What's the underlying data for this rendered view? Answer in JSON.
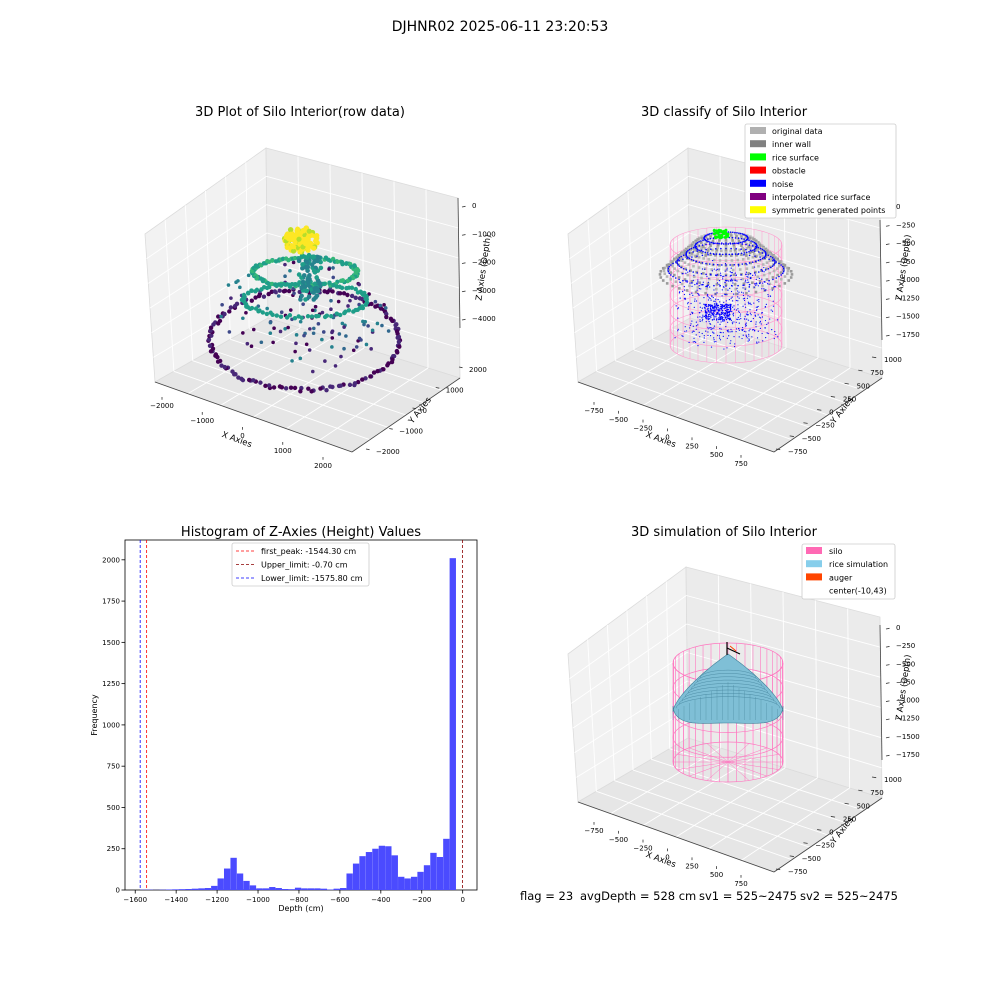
{
  "suptitle": "DJHNR02 2025-06-11 23:20:53",
  "footer": {
    "flag": "flag = 23",
    "avg_depth": "avgDepth = 528 cm",
    "sv1": "sv1 = 525~2475",
    "sv2": "sv2 = 525~2475"
  },
  "chart_data": [
    {
      "type": "scatter",
      "panel": "top-left",
      "title": "3D Plot of Silo Interior(row data)",
      "xlabel": "X Axies",
      "ylabel": "Y Axies",
      "zlabel": "Z Axies (Depth)",
      "x_ticks": [
        "−2000",
        "−1000",
        "0",
        "1000",
        "2000"
      ],
      "y_ticks": [
        "−2000",
        "−1000",
        "0",
        "1000",
        "2000"
      ],
      "z_ticks": [
        "0",
        "−1000",
        "−2000",
        "−3000",
        "−4000"
      ],
      "colormap": "viridis",
      "grid": true
    },
    {
      "type": "scatter",
      "panel": "top-right",
      "title": "3D classify of Silo Interior",
      "xlabel": "X Axies",
      "ylabel": "Y Axies",
      "zlabel": "Z Axies (Depth)",
      "x_ticks": [
        "−750",
        "−500",
        "−250",
        "0",
        "250",
        "500",
        "750"
      ],
      "y_ticks": [
        "−750",
        "−500",
        "−250",
        "0",
        "250",
        "500",
        "750",
        "1000"
      ],
      "z_ticks": [
        "0",
        "−250",
        "−500",
        "−750",
        "−1000",
        "−1250",
        "−1500",
        "−1750"
      ],
      "legend_position": "top-right",
      "legend": [
        {
          "label": "original data",
          "color": "#b0b0b0"
        },
        {
          "label": "inner wall",
          "color": "#808080"
        },
        {
          "label": "rice surface",
          "color": "#00ff00"
        },
        {
          "label": "obstacle",
          "color": "#ff0000"
        },
        {
          "label": "noise",
          "color": "#0000ff"
        },
        {
          "label": "interpolated rice surface",
          "color": "#800080"
        },
        {
          "label": "symmetric generated points",
          "color": "#ffff00"
        }
      ],
      "grid": true
    },
    {
      "type": "bar",
      "panel": "bottom-left",
      "title": "Histogram of Z-Axies (Height) Values",
      "xlabel": "Depth (cm)",
      "ylabel": "Frequency",
      "xlim": [
        -1650,
        70
      ],
      "ylim": [
        0,
        2120
      ],
      "x_ticks": [
        -1600,
        -1400,
        -1200,
        -1000,
        -800,
        -600,
        -400,
        -200,
        0
      ],
      "x_tick_labels": [
        "−1600",
        "−1400",
        "−1200",
        "−1000",
        "−800",
        "−600",
        "−400",
        "−200",
        "0"
      ],
      "y_ticks": [
        0,
        250,
        500,
        750,
        1000,
        1250,
        1500,
        1750,
        2000
      ],
      "bin_width": 31.5,
      "bins": [
        {
          "x": -1575.8,
          "v": 2
        },
        {
          "x": -1544.3,
          "v": 2
        },
        {
          "x": -1512.8,
          "v": 1
        },
        {
          "x": -1481.3,
          "v": 2
        },
        {
          "x": -1449.8,
          "v": 3
        },
        {
          "x": -1418.3,
          "v": 4
        },
        {
          "x": -1386.8,
          "v": 5
        },
        {
          "x": -1355.3,
          "v": 6
        },
        {
          "x": -1323.8,
          "v": 8
        },
        {
          "x": -1292.3,
          "v": 10
        },
        {
          "x": -1260.8,
          "v": 12
        },
        {
          "x": -1229.3,
          "v": 25
        },
        {
          "x": -1197.8,
          "v": 70
        },
        {
          "x": -1166.3,
          "v": 130
        },
        {
          "x": -1134.8,
          "v": 195
        },
        {
          "x": -1103.3,
          "v": 100
        },
        {
          "x": -1071.8,
          "v": 55
        },
        {
          "x": -1040.3,
          "v": 28
        },
        {
          "x": -1008.8,
          "v": 10
        },
        {
          "x": -977.3,
          "v": 10
        },
        {
          "x": -945.8,
          "v": 18
        },
        {
          "x": -914.3,
          "v": 12
        },
        {
          "x": -882.8,
          "v": 6
        },
        {
          "x": -851.3,
          "v": 5
        },
        {
          "x": -819.8,
          "v": 14
        },
        {
          "x": -788.3,
          "v": 10
        },
        {
          "x": -756.8,
          "v": 10
        },
        {
          "x": -725.3,
          "v": 10
        },
        {
          "x": -693.8,
          "v": 8
        },
        {
          "x": -662.3,
          "v": 3
        },
        {
          "x": -630.8,
          "v": 8
        },
        {
          "x": -599.3,
          "v": 12
        },
        {
          "x": -567.8,
          "v": 100
        },
        {
          "x": -536.3,
          "v": 160
        },
        {
          "x": -504.8,
          "v": 205
        },
        {
          "x": -473.3,
          "v": 230
        },
        {
          "x": -441.8,
          "v": 250
        },
        {
          "x": -410.3,
          "v": 268
        },
        {
          "x": -378.8,
          "v": 265
        },
        {
          "x": -347.3,
          "v": 210
        },
        {
          "x": -315.8,
          "v": 80
        },
        {
          "x": -284.3,
          "v": 70
        },
        {
          "x": -252.8,
          "v": 80
        },
        {
          "x": -221.3,
          "v": 110
        },
        {
          "x": -189.8,
          "v": 150
        },
        {
          "x": -158.3,
          "v": 225
        },
        {
          "x": -126.8,
          "v": 200
        },
        {
          "x": -95.3,
          "v": 310
        },
        {
          "x": -63.8,
          "v": 2010
        },
        {
          "x": -32.3,
          "v": 0
        }
      ],
      "lines": [
        {
          "label": "first_peak: -1544.30 cm",
          "x": -1544.3,
          "color": "#ff0000"
        },
        {
          "label": "Upper_limit: -0.70 cm",
          "x": -0.7,
          "color": "#8b0000"
        },
        {
          "label": "Lower_limit: -1575.80 cm",
          "x": -1575.8,
          "color": "#0000ff"
        }
      ],
      "bar_color": "#4b4bff",
      "legend_position": "top-center"
    },
    {
      "type": "area",
      "panel": "bottom-right",
      "title": "3D simulation of Silo Interior",
      "xlabel": "X Axies",
      "ylabel": "Y Axies",
      "zlabel": "Z Axies (Depth)",
      "x_ticks": [
        "−750",
        "−500",
        "−250",
        "0",
        "250",
        "500",
        "750"
      ],
      "y_ticks": [
        "−750",
        "−500",
        "−250",
        "0",
        "250",
        "500",
        "750",
        "1000"
      ],
      "z_ticks": [
        "0",
        "−250",
        "−500",
        "−750",
        "−1000",
        "−1250",
        "−1500",
        "−1750"
      ],
      "legend_position": "top-right",
      "legend": [
        {
          "label": "silo",
          "color": "#ff69b4"
        },
        {
          "label": "rice simulation",
          "color": "#87ceeb"
        },
        {
          "label": "auger",
          "color": "#ff4500"
        },
        {
          "label": "center(-10,43)",
          "color": "#ffffff"
        }
      ],
      "grid": true
    }
  ]
}
